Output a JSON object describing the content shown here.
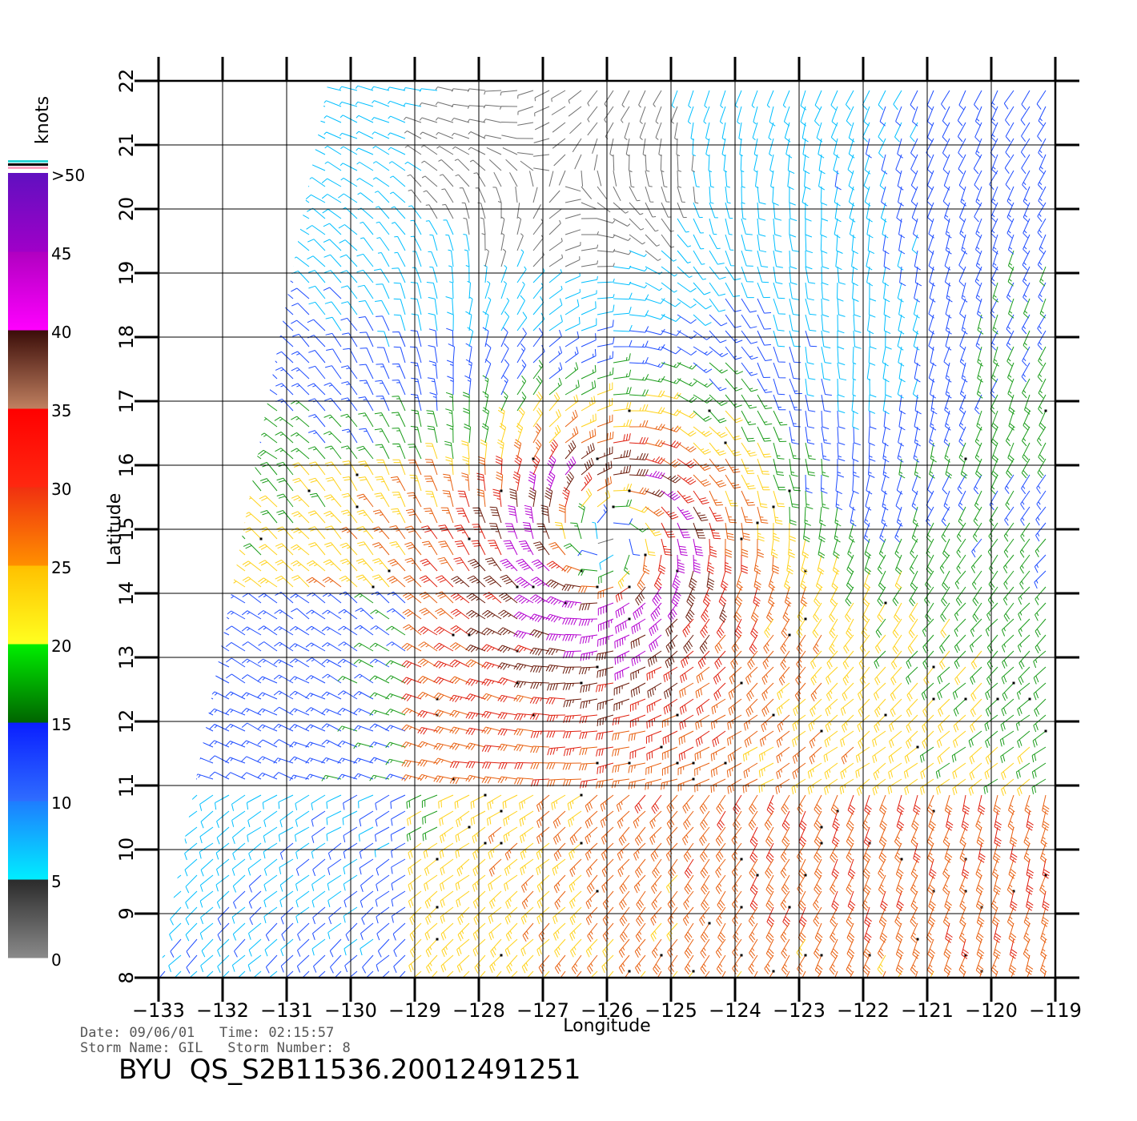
{
  "chart_data": {
    "type": "wind-barb-map",
    "xlabel": "Longitude",
    "ylabel": "Latitude",
    "xlim": [
      -133,
      -119
    ],
    "ylim": [
      8,
      22
    ],
    "x_ticks": [
      "-133",
      "-132",
      "-131",
      "-130",
      "-129",
      "-128",
      "-127",
      "-126",
      "-125",
      "-124",
      "-123",
      "-122",
      "-121",
      "-120",
      "-119"
    ],
    "y_ticks": [
      "8",
      "9",
      "10",
      "11",
      "12",
      "13",
      "14",
      "15",
      "16",
      "17",
      "18",
      "19",
      "20",
      "21",
      "22"
    ],
    "grid": true,
    "storm_center": {
      "lon": -126,
      "lat": 14.8
    },
    "swath": {
      "west_edge_top_lon": -130.5,
      "west_edge_bottom_lon": -133
    },
    "colorbar": {
      "title": "knots",
      "labels": [
        "0",
        "5",
        "10",
        "15",
        "20",
        "25",
        "30",
        "35",
        "40",
        "45",
        ">50"
      ],
      "bands": [
        {
          "from": 0,
          "to": 5,
          "top": "#2a2a2a",
          "bottom": "#8a8a8a"
        },
        {
          "from": 5,
          "to": 10,
          "top": "#1e7cff",
          "bottom": "#00eeff"
        },
        {
          "from": 10,
          "to": 15,
          "top": "#0a1eff",
          "bottom": "#2f6dff"
        },
        {
          "from": 15,
          "to": 20,
          "top": "#00f000",
          "bottom": "#006400"
        },
        {
          "from": 20,
          "to": 25,
          "top": "#ffc000",
          "bottom": "#ffff20"
        },
        {
          "from": 25,
          "to": 30,
          "top": "#f03010",
          "bottom": "#ff9000"
        },
        {
          "from": 30,
          "to": 35,
          "top": "#ff0000",
          "bottom": "#ff2810"
        },
        {
          "from": 35,
          "to": 40,
          "top": "#3a0c08",
          "bottom": "#c08060"
        },
        {
          "from": 40,
          "to": 45,
          "top": "#b000c0",
          "bottom": "#ff00ff"
        },
        {
          "from": 45,
          "to": 50,
          "top": "#6010c0",
          "bottom": "#a000c8"
        }
      ],
      "cap_colors": [
        "#2bd4d4",
        "#000000",
        "#ff9fbf"
      ]
    },
    "speed_colors": [
      "#707070",
      "#00bfff",
      "#1e4cff",
      "#1a9c1a",
      "#ffd21a",
      "#e86010",
      "#e02010",
      "#6a1a0a",
      "#b400d0"
    ],
    "speed_thresholds": [
      5,
      10,
      15,
      20,
      25,
      30,
      35,
      40
    ]
  },
  "info": {
    "date_line": "Date: 09/06/01   Time: 02:15:57",
    "storm_line": "Storm Name: GIL   Storm Number: 8"
  },
  "product_id": "BYU  QS_S2B11536.20012491251"
}
